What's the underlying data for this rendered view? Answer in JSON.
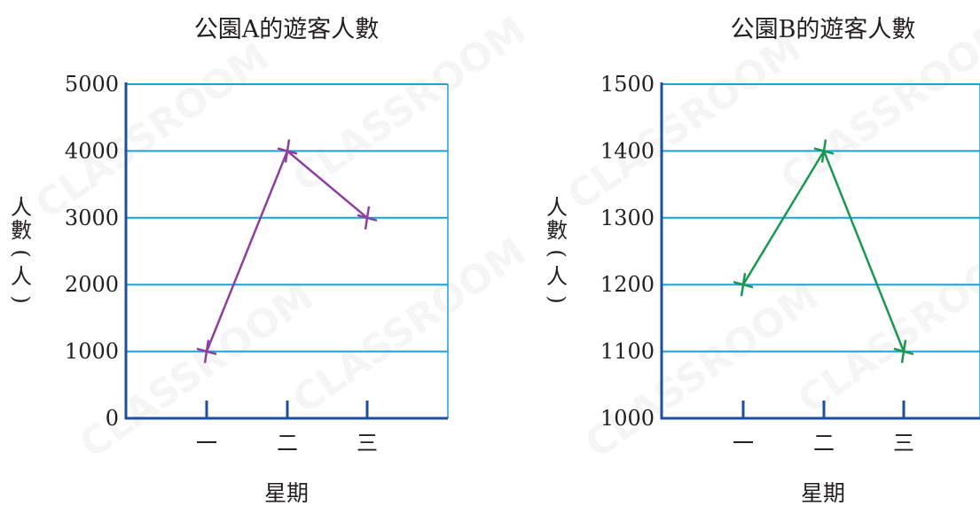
{
  "chart_data": [
    {
      "type": "line",
      "title": "公園A的遊客人數",
      "xlabel": "星期",
      "ylabel": "人數(人)",
      "categories": [
        "一",
        "二",
        "三"
      ],
      "values": [
        1000,
        4000,
        3000
      ],
      "ylim": [
        0,
        5000
      ],
      "yticks": [
        "0",
        "1000",
        "2000",
        "3000",
        "4000",
        "5000"
      ],
      "grid": true,
      "line_color": "#8e3e9e"
    },
    {
      "type": "line",
      "title": "公園B的遊客人數",
      "xlabel": "星期",
      "ylabel": "人數(人)",
      "categories": [
        "一",
        "二",
        "三"
      ],
      "values": [
        1200,
        1400,
        1100
      ],
      "ylim": [
        1000,
        1500
      ],
      "yticks": [
        "1000",
        "1100",
        "1200",
        "1300",
        "1400",
        "1500"
      ],
      "grid": true,
      "line_color": "#1a9850"
    }
  ],
  "watermark": "CLASSROOM",
  "colors": {
    "axis": "#1f4fa0",
    "grid": "#1aa3d9",
    "text": "#231f20"
  }
}
